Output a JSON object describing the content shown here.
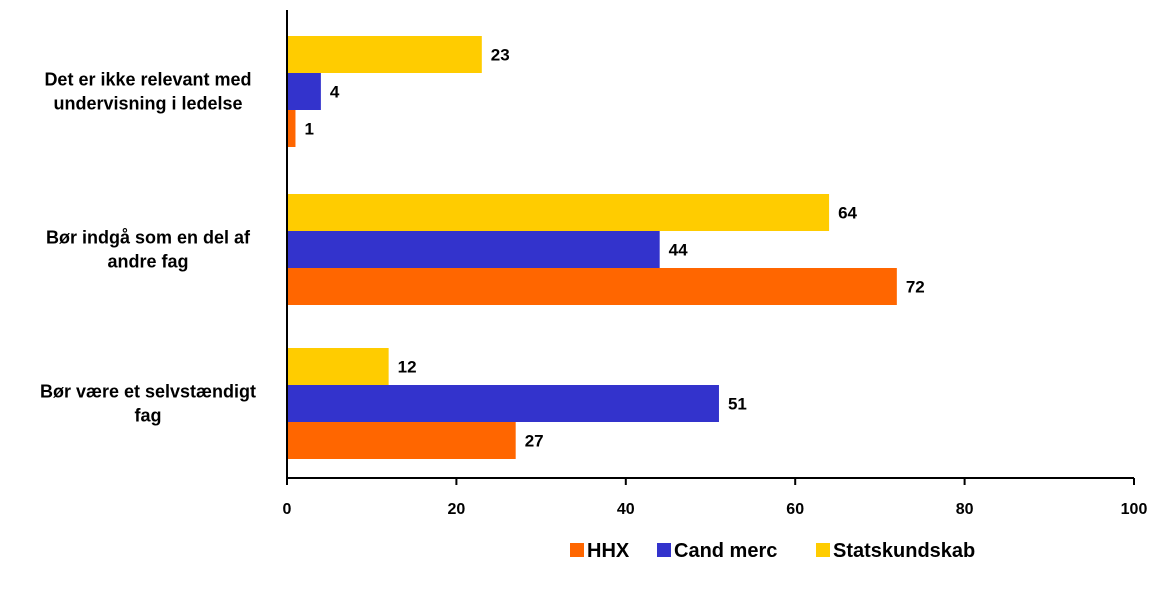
{
  "chart_data": {
    "type": "bar",
    "orientation": "horizontal",
    "categories": [
      "Det er ikke relevant med undervisning i ledelse",
      "Bør indgå som en del af andre fag",
      "Bør være et selvstændigt fag"
    ],
    "category_lines": [
      [
        "Det er ikke relevant med",
        "undervisning i ledelse"
      ],
      [
        "Bør indgå som en del af",
        "andre fag"
      ],
      [
        "Bør være et selvstændigt",
        "fag"
      ]
    ],
    "series": [
      {
        "name": "HHX",
        "color": "#ff6600",
        "values": [
          1,
          72,
          27
        ]
      },
      {
        "name": "Cand merc",
        "color": "#3333cc",
        "values": [
          4,
          44,
          51
        ]
      },
      {
        "name": "Statskundskab",
        "color": "#ffcc00",
        "values": [
          23,
          64,
          12
        ]
      }
    ],
    "xlim": [
      0,
      100
    ],
    "xticks": [
      0,
      20,
      40,
      60,
      80,
      100
    ],
    "grid": false,
    "legend_position": "bottom-right",
    "title": "",
    "xlabel": "",
    "ylabel": ""
  }
}
